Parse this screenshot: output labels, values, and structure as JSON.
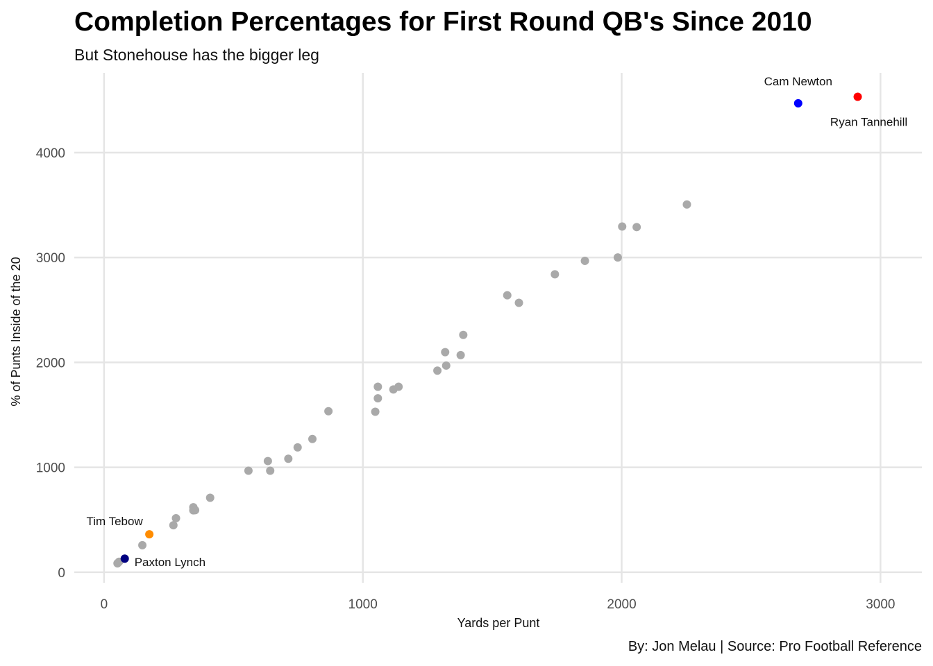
{
  "chart_data": {
    "type": "scatter",
    "title": "Completion Percentages for First Round QB's Since 2010",
    "subtitle": "But Stonehouse has the bigger leg",
    "caption": "By: Jon Melau | Source: Pro Football Reference",
    "xlabel": "Yards per Punt",
    "ylabel": "% of Punts Inside of the 20",
    "xlim": [
      -115,
      3160
    ],
    "ylim": [
      -100,
      4760
    ],
    "xticks": [
      0,
      1000,
      2000,
      3000
    ],
    "yticks": [
      0,
      1000,
      2000,
      3000,
      4000
    ],
    "grid": true,
    "default_color": "#a9a9a9",
    "points": [
      {
        "x": 52,
        "y": 85
      },
      {
        "x": 58,
        "y": 100
      },
      {
        "x": 148,
        "y": 258
      },
      {
        "x": 268,
        "y": 448
      },
      {
        "x": 278,
        "y": 515
      },
      {
        "x": 345,
        "y": 620
      },
      {
        "x": 345,
        "y": 590
      },
      {
        "x": 352,
        "y": 592
      },
      {
        "x": 410,
        "y": 710
      },
      {
        "x": 558,
        "y": 968
      },
      {
        "x": 633,
        "y": 1060
      },
      {
        "x": 642,
        "y": 968
      },
      {
        "x": 712,
        "y": 1082
      },
      {
        "x": 748,
        "y": 1190
      },
      {
        "x": 805,
        "y": 1270
      },
      {
        "x": 867,
        "y": 1535
      },
      {
        "x": 1048,
        "y": 1530
      },
      {
        "x": 1058,
        "y": 1768
      },
      {
        "x": 1058,
        "y": 1658
      },
      {
        "x": 1118,
        "y": 1742
      },
      {
        "x": 1138,
        "y": 1768
      },
      {
        "x": 1288,
        "y": 1922
      },
      {
        "x": 1318,
        "y": 2098
      },
      {
        "x": 1322,
        "y": 1970
      },
      {
        "x": 1378,
        "y": 2070
      },
      {
        "x": 1388,
        "y": 2262
      },
      {
        "x": 1558,
        "y": 2640
      },
      {
        "x": 1603,
        "y": 2568
      },
      {
        "x": 1742,
        "y": 2840
      },
      {
        "x": 1858,
        "y": 2968
      },
      {
        "x": 1985,
        "y": 3000
      },
      {
        "x": 2002,
        "y": 3295
      },
      {
        "x": 2058,
        "y": 3290
      },
      {
        "x": 2252,
        "y": 3505
      }
    ],
    "highlights": [
      {
        "label": "Cam Newton",
        "x": 2682,
        "y": 4470,
        "color": "#0000ff"
      },
      {
        "label": "Ryan Tannehill",
        "x": 2912,
        "y": 4532,
        "color": "#ff0000"
      },
      {
        "label": "Tim Tebow",
        "x": 175,
        "y": 362,
        "color": "#ff8c00"
      },
      {
        "label": "Paxton Lynch",
        "x": 80,
        "y": 130,
        "color": "#000080"
      }
    ]
  }
}
